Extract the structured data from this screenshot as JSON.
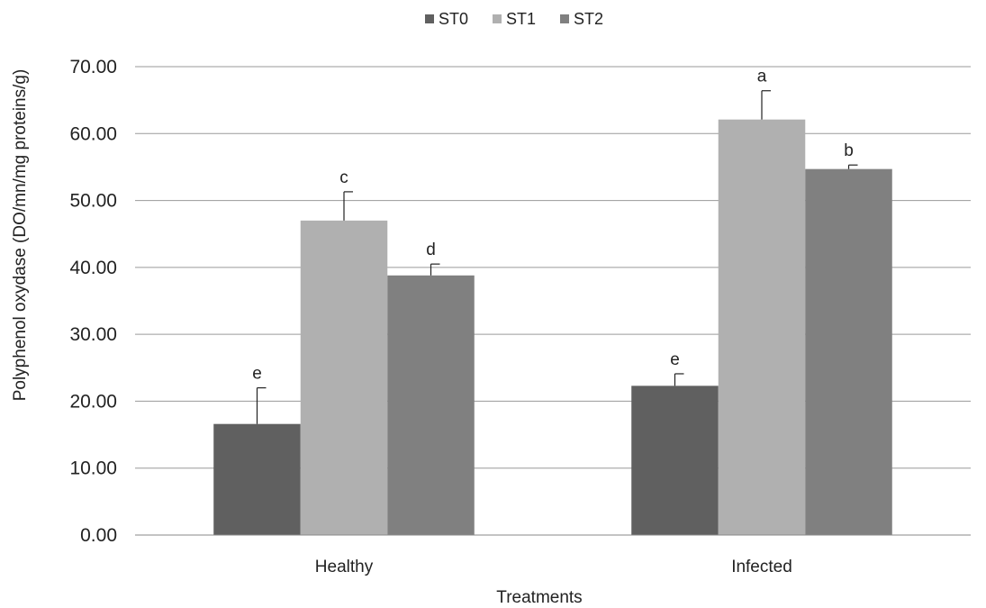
{
  "chart_data": {
    "type": "bar",
    "title": "",
    "xlabel": "Treatments",
    "ylabel": "Polyphenol oxydase (DO/mn/mg proteins/g)",
    "ylim": [
      0,
      70
    ],
    "ytick_step": 10,
    "ytick_labels": [
      "0.00",
      "10.00",
      "20.00",
      "30.00",
      "40.00",
      "50.00",
      "60.00",
      "70.00"
    ],
    "grid": true,
    "legend_position": "top",
    "categories": [
      "Healthy",
      "Infected"
    ],
    "series": [
      {
        "name": "ST0",
        "color": "#606060",
        "values": [
          16.6,
          22.3
        ],
        "errors": [
          5.4,
          1.8
        ],
        "letters": [
          "e",
          "e"
        ]
      },
      {
        "name": "ST1",
        "color": "#b0b0b0",
        "values": [
          47.0,
          62.1
        ],
        "errors": [
          4.3,
          4.3
        ],
        "letters": [
          "c",
          "a"
        ]
      },
      {
        "name": "ST2",
        "color": "#808080",
        "values": [
          38.8,
          54.7
        ],
        "errors": [
          1.7,
          0.6
        ],
        "letters": [
          "d",
          "b"
        ]
      }
    ]
  }
}
